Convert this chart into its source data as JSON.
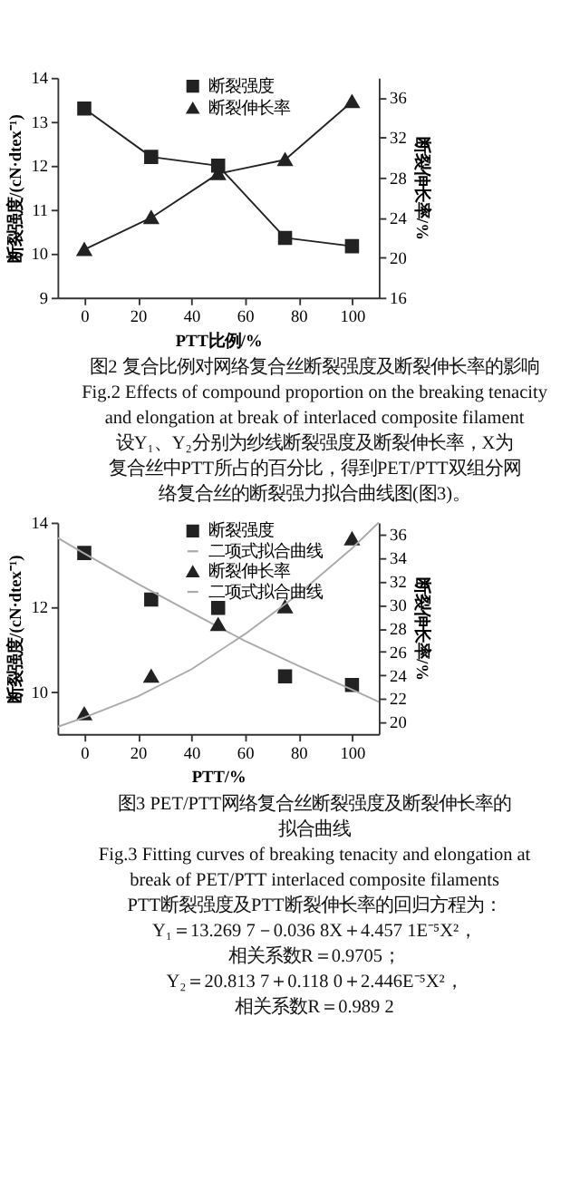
{
  "chart_data": [
    {
      "type": "line",
      "x": [
        0,
        25,
        50,
        75,
        100
      ],
      "xlabel": "PTT比例/%",
      "ylabel": "断裂强度/(cN·dtex⁻¹)",
      "y2label": "断裂伸长率/%",
      "xlim": [
        -10,
        110
      ],
      "xticks": [
        0,
        20,
        40,
        60,
        80,
        100
      ],
      "ylim": [
        9,
        14
      ],
      "yticks": [
        9,
        10,
        11,
        12,
        13,
        14
      ],
      "y2lim": [
        16,
        38
      ],
      "y2ticks": [
        16,
        20,
        24,
        28,
        32,
        36
      ],
      "legend": "top",
      "grid": false,
      "line_style": "solid",
      "series": [
        {
          "name": "断裂强度",
          "color": "#222222",
          "marker": "square",
          "values": [
            13.3,
            12.2,
            12.0,
            10.36,
            10.17
          ]
        },
        {
          "name": "断裂伸长率",
          "color": "#222222",
          "marker": "triangle",
          "axis": "y2",
          "values": [
            20.8,
            24.0,
            28.4,
            29.8,
            35.6
          ]
        }
      ],
      "annotations": [
        "图2 复合比例对网络复合丝断裂强度及断裂伸长率的影响",
        "Fig.2 Effects of compound proportion on the breaking tenacity",
        "and elongation at break of interlaced composite filament",
        "设Y₁、Y₂分别为纱线断裂强度及断裂伸长率，X为",
        "复合丝中PTT所占的百分比，得到PET/PTT双组分网",
        "络复合丝的断裂强力拟合曲线图(图3)。"
      ]
    },
    {
      "type": "scatter",
      "x": [
        0,
        25,
        50,
        75,
        100
      ],
      "xlabel": "PTT/%",
      "ylabel": "断裂强度/(cN·dtex⁻¹)",
      "y2label": "断裂伸长率/%",
      "xlim": [
        -10,
        110
      ],
      "xticks": [
        0,
        20,
        40,
        60,
        80,
        100
      ],
      "ylim": [
        9,
        14
      ],
      "yticks": [
        10,
        12,
        14
      ],
      "y2lim": [
        19,
        37
      ],
      "y2ticks": [
        20,
        22,
        24,
        26,
        28,
        30,
        32,
        34,
        36
      ],
      "legend": "top",
      "grid": false,
      "series": [
        {
          "name": "断裂强度",
          "color": "#222222",
          "marker": "square",
          "values": [
            13.28,
            12.18,
            11.98,
            10.36,
            10.16
          ]
        },
        {
          "name": "二项式拟合曲线",
          "type": "line",
          "color": "#aaaaaa",
          "marker": "none",
          "x": [
            -10,
            0,
            20,
            40,
            60,
            80,
            100,
            110
          ],
          "values": [
            13.64,
            13.27,
            12.55,
            11.87,
            11.2,
            10.61,
            10.05,
            9.76
          ]
        },
        {
          "name": "断裂伸长率",
          "color": "#222222",
          "marker": "triangle",
          "axis": "y2",
          "values": [
            20.7,
            23.9,
            28.3,
            29.8,
            35.6
          ]
        },
        {
          "name": "二项式拟合曲线",
          "type": "line",
          "color": "#aaaaaa",
          "marker": "none",
          "axis": "y2",
          "x": [
            -10,
            0,
            20,
            40,
            60,
            80,
            100,
            110
          ],
          "values": [
            19.6,
            20.4,
            22.2,
            24.5,
            27.5,
            30.9,
            34.8,
            37.0
          ]
        }
      ],
      "annotations": [
        "图3 PET/PTT网络复合丝断裂强度及断裂伸长率的",
        "拟合曲线",
        "Fig.3 Fitting curves of breaking tenacity and elongation at",
        "break of PET/PTT interlaced composite filaments",
        "PTT断裂强度及PTT断裂伸长率的回归方程为：",
        "Y₁＝13.269 7－0.036 8X＋4.457 1E⁻⁵X²，",
        "相关系数R＝0.9705；",
        "Y₂＝20.813 7＋0.118 0＋2.446E⁻⁵X²，",
        "相关系数R＝0.989 2"
      ]
    }
  ]
}
